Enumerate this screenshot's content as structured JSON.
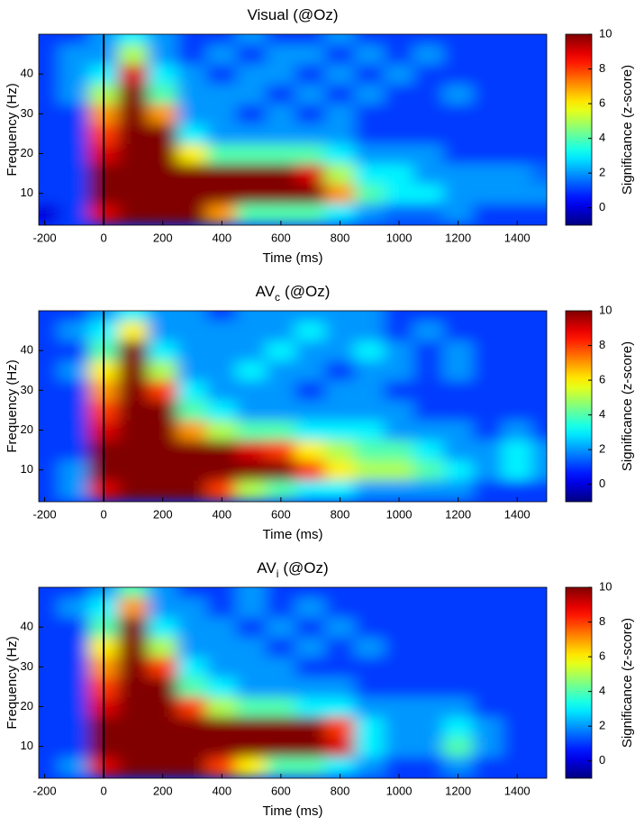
{
  "chart_data": [
    {
      "type": "heatmap",
      "title": "Visual (@Oz)",
      "xlabel": "Time (ms)",
      "ylabel": "Frequency (Hz)",
      "colorbar_label": "Significance (z-score)",
      "colormap": "jet",
      "x": [
        -200,
        -100,
        0,
        100,
        200,
        300,
        400,
        500,
        600,
        700,
        800,
        900,
        1000,
        1100,
        1200,
        1300,
        1400,
        1500
      ],
      "y": [
        5,
        10,
        15,
        20,
        25,
        30,
        35,
        40,
        45,
        50
      ],
      "z": [
        [
          0,
          1,
          9,
          10,
          10,
          10,
          7,
          4,
          4,
          4,
          3,
          2,
          1.5,
          1.5,
          2,
          1,
          1,
          1
        ],
        [
          1,
          1,
          10,
          10,
          10,
          10,
          10,
          10,
          10,
          10,
          7,
          4,
          3,
          3,
          2,
          2,
          2,
          2
        ],
        [
          1,
          1,
          10,
          10,
          10,
          10,
          10,
          10,
          10,
          9,
          5,
          3,
          3,
          2,
          2,
          2,
          2,
          1.5
        ],
        [
          1,
          1,
          9,
          10,
          10,
          6,
          4,
          4,
          4,
          4,
          3,
          2,
          2,
          2,
          1,
          1,
          1,
          1
        ],
        [
          1,
          1,
          8,
          10,
          10,
          3,
          2,
          2,
          2,
          2,
          2,
          1,
          1,
          1,
          1,
          1,
          1,
          1
        ],
        [
          1,
          1,
          7,
          10,
          7,
          2,
          2,
          1,
          2,
          1,
          2,
          1,
          1,
          1,
          1,
          1,
          1,
          1
        ],
        [
          1,
          2,
          5,
          10,
          4,
          2,
          2,
          2,
          1,
          2,
          1,
          2,
          1,
          1,
          2,
          1,
          1,
          1
        ],
        [
          1,
          2,
          3,
          9,
          3,
          2,
          1,
          2,
          2,
          1,
          2,
          1,
          2,
          1,
          1,
          1,
          1,
          1
        ],
        [
          1,
          2,
          2,
          5,
          2,
          1,
          2,
          1,
          2,
          2,
          1,
          2,
          1,
          2,
          1,
          1,
          1,
          1
        ],
        [
          1,
          1,
          2,
          3,
          2,
          1,
          1,
          2,
          1,
          1,
          2,
          1,
          1,
          1,
          1,
          1,
          1,
          1
        ]
      ],
      "xlim": [
        -220,
        1500
      ],
      "xticks": [
        -200,
        0,
        200,
        400,
        600,
        800,
        1000,
        1200,
        1400
      ],
      "ylim": [
        2,
        50
      ],
      "yticks": [
        10,
        20,
        30,
        40
      ],
      "zlim": [
        -1,
        10
      ],
      "zticks": [
        0,
        2,
        4,
        6,
        8,
        10
      ],
      "vline": 0
    },
    {
      "type": "heatmap",
      "title": "AV",
      "title_sub": "c",
      "title_end": "(@Oz)",
      "xlabel": "Time (ms)",
      "ylabel": "Frequency (Hz)",
      "colorbar_label": "Significance (z-score)",
      "colormap": "jet",
      "x": [
        -200,
        -100,
        0,
        100,
        200,
        300,
        400,
        500,
        600,
        700,
        800,
        900,
        1000,
        1100,
        1200,
        1300,
        1400,
        1500
      ],
      "y": [
        5,
        10,
        15,
        20,
        25,
        30,
        35,
        40,
        45,
        50
      ],
      "z": [
        [
          1,
          2,
          9,
          10,
          10,
          10,
          8,
          5,
          4,
          3,
          3,
          2,
          2,
          2,
          2,
          1,
          1,
          1
        ],
        [
          1,
          2,
          10,
          10,
          10,
          10,
          10,
          10,
          10,
          8,
          6,
          5,
          5,
          4,
          3,
          2,
          3,
          2
        ],
        [
          1,
          1,
          10,
          10,
          10,
          10,
          10,
          9,
          8,
          6,
          5,
          4,
          4,
          3,
          2,
          2,
          3,
          2
        ],
        [
          1,
          1,
          9,
          10,
          10,
          7,
          5,
          4,
          4,
          3,
          3,
          3,
          2,
          2,
          2,
          1,
          2,
          1
        ],
        [
          1,
          1,
          8,
          10,
          10,
          4,
          3,
          2,
          2,
          2,
          2,
          2,
          2,
          1,
          1,
          1,
          1,
          1
        ],
        [
          1,
          1,
          7,
          10,
          8,
          3,
          2,
          2,
          2,
          1,
          2,
          2,
          1,
          1,
          1,
          1,
          1,
          1
        ],
        [
          1,
          2,
          6,
          10,
          5,
          2,
          2,
          3,
          2,
          2,
          1,
          2,
          2,
          1,
          2,
          1,
          1,
          1
        ],
        [
          1,
          1,
          4,
          10,
          3,
          2,
          2,
          2,
          3,
          2,
          2,
          3,
          2,
          1,
          2,
          1,
          1,
          1
        ],
        [
          1,
          2,
          3,
          6,
          2,
          2,
          2,
          2,
          2,
          3,
          2,
          2,
          1,
          2,
          1,
          1,
          1,
          1
        ],
        [
          1,
          1,
          2,
          3,
          2,
          2,
          1,
          2,
          2,
          2,
          2,
          2,
          1,
          1,
          1,
          1,
          1,
          1
        ]
      ],
      "xlim": [
        -220,
        1500
      ],
      "xticks": [
        -200,
        0,
        200,
        400,
        600,
        800,
        1000,
        1200,
        1400
      ],
      "ylim": [
        2,
        50
      ],
      "yticks": [
        10,
        20,
        30,
        40
      ],
      "zlim": [
        -1,
        10
      ],
      "zticks": [
        0,
        2,
        4,
        6,
        8,
        10
      ],
      "vline": 0
    },
    {
      "type": "heatmap",
      "title": "AV",
      "title_sub": "i",
      "title_end": "(@Oz)",
      "xlabel": "Time (ms)",
      "ylabel": "Frequency (Hz)",
      "colorbar_label": "Significance (z-score)",
      "colormap": "jet",
      "x": [
        -200,
        -100,
        0,
        100,
        200,
        300,
        400,
        500,
        600,
        700,
        800,
        900,
        1000,
        1100,
        1200,
        1300,
        1400,
        1500
      ],
      "y": [
        5,
        10,
        15,
        20,
        25,
        30,
        35,
        40,
        45,
        50
      ],
      "z": [
        [
          1,
          2,
          9,
          10,
          10,
          10,
          8,
          6,
          4,
          4,
          3,
          2,
          1,
          1,
          2,
          1,
          1,
          1
        ],
        [
          1,
          1,
          10,
          10,
          10,
          10,
          10,
          10,
          10,
          10,
          9,
          3,
          2,
          2,
          4,
          2,
          1,
          1
        ],
        [
          1,
          1,
          10,
          10,
          10,
          10,
          10,
          10,
          10,
          10,
          8,
          3,
          2,
          2,
          3,
          2,
          1,
          1
        ],
        [
          1,
          1,
          9,
          10,
          10,
          8,
          5,
          4,
          4,
          3,
          3,
          2,
          2,
          2,
          2,
          1,
          1,
          1
        ],
        [
          1,
          1,
          8,
          10,
          10,
          4,
          3,
          2,
          2,
          2,
          2,
          1,
          1,
          1,
          1,
          1,
          1,
          1
        ],
        [
          1,
          1,
          7,
          10,
          8,
          3,
          2,
          2,
          2,
          1,
          1,
          1,
          1,
          1,
          1,
          1,
          1,
          1
        ],
        [
          1,
          1,
          6,
          10,
          5,
          2,
          2,
          2,
          1,
          2,
          1,
          2,
          1,
          1,
          1,
          1,
          1,
          1
        ],
        [
          1,
          1,
          4,
          10,
          3,
          2,
          2,
          1,
          2,
          1,
          2,
          1,
          1,
          1,
          1,
          1,
          1,
          1
        ],
        [
          1,
          2,
          3,
          7,
          2,
          2,
          1,
          2,
          1,
          2,
          1,
          1,
          1,
          1,
          1,
          1,
          1,
          1
        ],
        [
          1,
          1,
          2,
          4,
          2,
          1,
          1,
          2,
          1,
          1,
          1,
          1,
          1,
          1,
          1,
          1,
          1,
          1
        ]
      ],
      "xlim": [
        -220,
        1500
      ],
      "xticks": [
        -200,
        0,
        200,
        400,
        600,
        800,
        1000,
        1200,
        1400
      ],
      "ylim": [
        2,
        50
      ],
      "yticks": [
        10,
        20,
        30,
        40
      ],
      "zlim": [
        -1,
        10
      ],
      "zticks": [
        0,
        2,
        4,
        6,
        8,
        10
      ],
      "vline": 0
    }
  ]
}
